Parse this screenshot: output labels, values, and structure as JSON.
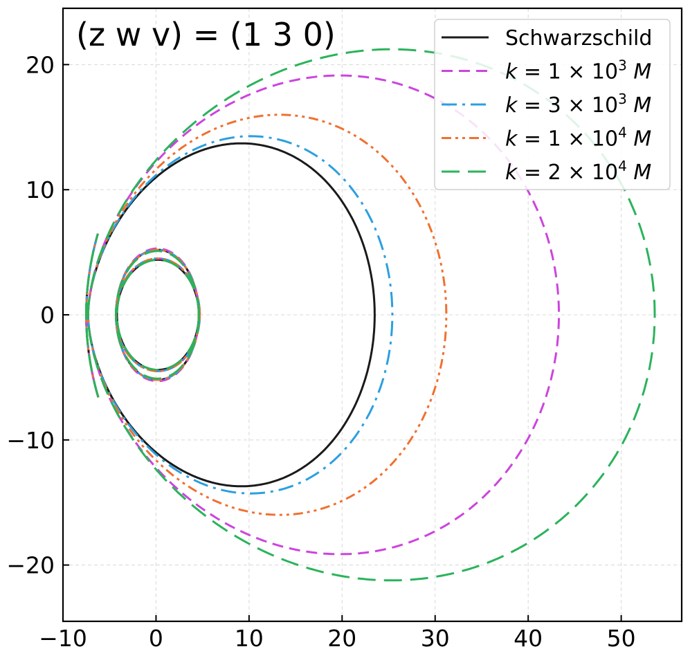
{
  "chart_data": {
    "type": "line",
    "title": "(z w v) = (1 3 0)",
    "xlabel": "",
    "ylabel": "",
    "xlim": [
      -10,
      56.5
    ],
    "ylim": [
      -24.5,
      24.5
    ],
    "xticks": [
      -10,
      0,
      10,
      20,
      30,
      40,
      50
    ],
    "yticks": [
      -20,
      -10,
      0,
      10,
      20
    ],
    "xtick_labels": [
      "−10",
      "0",
      "10",
      "20",
      "30",
      "40",
      "50"
    ],
    "ytick_labels": [
      "−20",
      "−10",
      "0",
      "10",
      "20"
    ],
    "grid": true,
    "legend_position": "top-right",
    "orbit": {
      "leaves": 3,
      "r_min": 4.4,
      "r_max_leaf": 9.2,
      "pericenter_x": -7.3
    },
    "series": [
      {
        "name": "Schwarzschild",
        "label_html": "Schwarzschild",
        "color": "#1a1a1a",
        "dash": "solid",
        "r_max": 23.5,
        "inner_loop_r": 4.4,
        "petal": [
          -4.3,
          4.6,
          5.2
        ]
      },
      {
        "name": "k = 1 × 10^3 M",
        "label_pre": "k = 1 × 10",
        "label_sup": "3",
        "label_post": "M",
        "color": "#cc44dd",
        "dash": "dashed",
        "r_max": 43.3,
        "apocenter_top": [
          16.9,
          20.1
        ],
        "inner_loop_r": 4.5,
        "petal": [
          -4.3,
          4.6,
          5.3
        ]
      },
      {
        "name": "k = 3 × 10^3 M",
        "label_pre": "k = 3 × 10",
        "label_sup": "3",
        "label_post": "M",
        "color": "#2b9fe0",
        "dash": "dashdot",
        "r_max": 25.4,
        "apocenter_top": [
          8.6,
          15.0
        ],
        "inner_loop_r": 4.5,
        "petal": [
          -4.3,
          4.6,
          5.2
        ]
      },
      {
        "name": "k = 1 × 10^4 M",
        "label_pre": "k = 1 × 10",
        "label_sup": "4",
        "label_post": "M",
        "color": "#f07030",
        "dash": "dashdotdot",
        "r_max": 31.2,
        "apocenter_top": [
          11.5,
          16.8
        ],
        "inner_loop_r": 4.5,
        "petal": [
          -4.3,
          4.6,
          5.2
        ]
      },
      {
        "name": "k = 2 × 10^4 M",
        "label_pre": "k = 2 × 10",
        "label_sup": "4",
        "label_post": "M",
        "color": "#2ab35a",
        "dash": "longdash",
        "r_max": 53.6,
        "apocenter_top": [
          22.4,
          22.3
        ],
        "inner_loop_r": 4.4,
        "petal": [
          -4.3,
          4.6,
          5.1
        ]
      }
    ]
  }
}
